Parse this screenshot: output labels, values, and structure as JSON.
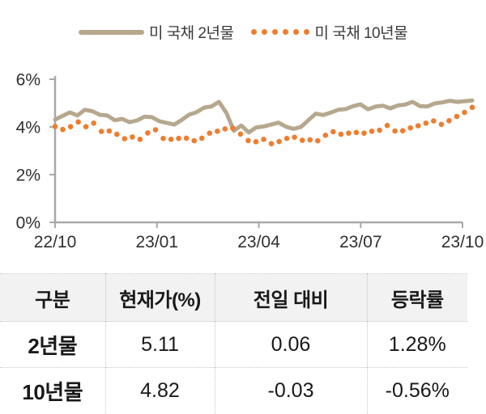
{
  "legend": {
    "series_2yr_label": "미 국채 2년물",
    "series_10yr_label": "미 국채 10년물"
  },
  "colors": {
    "line_2yr": "#b5a88d",
    "dots_10yr": "#ee7d2f",
    "axis": "#a8a8a8",
    "axis_text": "#303030"
  },
  "chart_data": {
    "type": "line",
    "title": "",
    "xlabel": "",
    "ylabel": "",
    "ylim": [
      0,
      6
    ],
    "y_ticks": [
      6,
      4,
      2,
      0
    ],
    "y_tick_suffix": "%",
    "x_ticks": [
      "22/10",
      "23/01",
      "23/04",
      "23/07",
      "23/10"
    ],
    "grid": false,
    "legend_position": "top",
    "series": [
      {
        "name": "미 국채 2년물",
        "style": "solid",
        "color": "#b5a88d",
        "values": [
          4.31,
          4.46,
          4.61,
          4.48,
          4.72,
          4.66,
          4.51,
          4.48,
          4.28,
          4.34,
          4.2,
          4.27,
          4.43,
          4.41,
          4.24,
          4.17,
          4.1,
          4.29,
          4.52,
          4.62,
          4.81,
          4.86,
          5.05,
          4.59,
          3.84,
          4.06,
          3.77,
          3.98,
          4.02,
          4.1,
          4.18,
          4.01,
          3.92,
          4.0,
          4.28,
          4.56,
          4.5,
          4.6,
          4.72,
          4.75,
          4.87,
          4.95,
          4.74,
          4.85,
          4.89,
          4.78,
          4.9,
          4.94,
          5.05,
          4.87,
          4.86,
          4.99,
          5.03,
          5.1,
          5.05,
          5.08,
          5.11
        ]
      },
      {
        "name": "미 국채 10년물",
        "style": "dotted",
        "color": "#ee7d2f",
        "values": [
          4.02,
          3.89,
          4.01,
          4.21,
          4.01,
          4.16,
          3.81,
          3.83,
          3.69,
          3.51,
          3.58,
          3.48,
          3.75,
          3.88,
          3.52,
          3.48,
          3.52,
          3.53,
          3.42,
          3.53,
          3.74,
          3.82,
          3.92,
          3.95,
          3.7,
          3.43,
          3.38,
          3.48,
          3.3,
          3.39,
          3.52,
          3.57,
          3.44,
          3.46,
          3.42,
          3.65,
          3.8,
          3.69,
          3.74,
          3.77,
          3.74,
          3.82,
          3.86,
          4.06,
          3.83,
          3.84,
          3.96,
          4.05,
          4.16,
          4.25,
          4.11,
          4.26,
          4.44,
          4.61,
          4.82
        ]
      }
    ]
  },
  "table": {
    "headers": [
      "구분",
      "현재가(%)",
      "전일 대비",
      "등락률"
    ],
    "rows": [
      {
        "cells": [
          "2년물",
          "5.11",
          "0.06",
          "1.28%"
        ]
      },
      {
        "cells": [
          "10년물",
          "4.82",
          "-0.03",
          "-0.56%"
        ]
      }
    ]
  }
}
